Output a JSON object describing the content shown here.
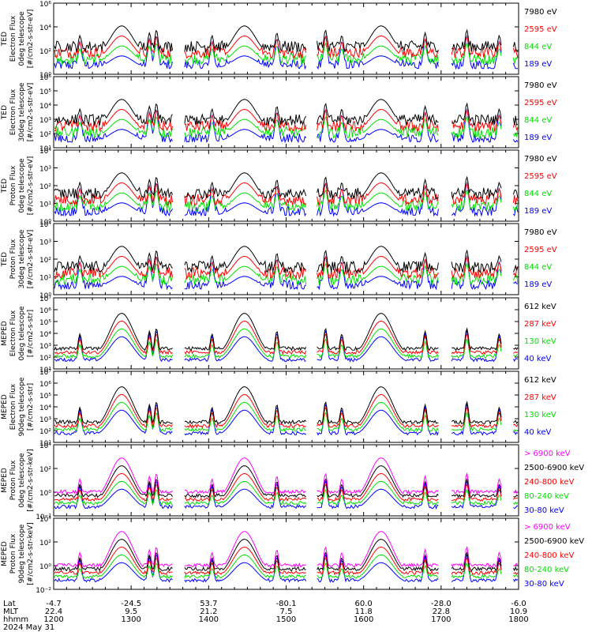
{
  "colors": {
    "blue": "#0000ff",
    "red": "#ff0000",
    "green": "#00e000",
    "black": "#000000",
    "magenta": "#ff00ff"
  },
  "chart_data": [
    {
      "type": "line",
      "ylabel": [
        "TED",
        "Electron Flux",
        "0deg telescope",
        "[#/cm2-s-str-eV]"
      ],
      "log_ticks": [
        "10⁰",
        "10²",
        "10⁴",
        "10⁶"
      ],
      "series": [
        {
          "name": "7980 eV",
          "color": "black"
        },
        {
          "name": "2595 eV",
          "color": "red"
        },
        {
          "name": "844 eV",
          "color": "green"
        },
        {
          "name": "189 eV",
          "color": "blue"
        }
      ]
    },
    {
      "type": "line",
      "ylabel": [
        "TED",
        "Electron Flux",
        "30deg telescope",
        "[#/cm2-s-str-eV]"
      ],
      "log_ticks": [
        "10¹",
        "10²",
        "10³",
        "10⁴",
        "10⁵",
        "10⁶"
      ],
      "series": [
        {
          "name": "7980 eV",
          "color": "black"
        },
        {
          "name": "2595 eV",
          "color": "red"
        },
        {
          "name": "844 eV",
          "color": "green"
        },
        {
          "name": "189 eV",
          "color": "blue"
        }
      ]
    },
    {
      "type": "line",
      "ylabel": [
        "TED",
        "Proton Flux",
        "0deg telescope",
        "[#/cm2-s-str-eV]"
      ],
      "log_ticks": [
        "10⁰",
        "10¹",
        "10²",
        "10³",
        "10⁴"
      ],
      "series": [
        {
          "name": "7980 eV",
          "color": "black"
        },
        {
          "name": "2595 eV",
          "color": "red"
        },
        {
          "name": "844 eV",
          "color": "green"
        },
        {
          "name": "189 eV",
          "color": "blue"
        }
      ]
    },
    {
      "type": "line",
      "ylabel": [
        "TED",
        "Proton Flux",
        "30deg telescope",
        "[#/cm2-s-str-eV]"
      ],
      "log_ticks": [
        "10⁰",
        "10¹",
        "10²",
        "10³",
        "10⁴"
      ],
      "series": [
        {
          "name": "7980 eV",
          "color": "black"
        },
        {
          "name": "2595 eV",
          "color": "red"
        },
        {
          "name": "844 eV",
          "color": "green"
        },
        {
          "name": "189 eV",
          "color": "blue"
        }
      ]
    },
    {
      "type": "line",
      "ylabel": [
        "MEPED",
        "Electron Flux",
        "0deg telescope",
        "[#/cm2-s-str]"
      ],
      "log_ticks": [
        "10¹",
        "10²",
        "10³",
        "10⁴",
        "10⁵",
        "10⁶",
        "10⁷"
      ],
      "series": [
        {
          "name": "612 keV",
          "color": "black"
        },
        {
          "name": "287 keV",
          "color": "red"
        },
        {
          "name": "130 keV",
          "color": "green"
        },
        {
          "name": "40 keV",
          "color": "blue"
        }
      ]
    },
    {
      "type": "line",
      "ylabel": [
        "MEPED",
        "Electron Flux",
        "90deg telescope",
        "[#/cm2-s-str]"
      ],
      "log_ticks": [
        "10¹",
        "10²",
        "10³",
        "10⁴",
        "10⁵",
        "10⁶",
        "10⁷"
      ],
      "series": [
        {
          "name": "612 keV",
          "color": "black"
        },
        {
          "name": "287 keV",
          "color": "red"
        },
        {
          "name": "130 keV",
          "color": "green"
        },
        {
          "name": "40 keV",
          "color": "blue"
        }
      ]
    },
    {
      "type": "line",
      "ylabel": [
        "MEPED",
        "Proton Flux",
        "0deg telescope",
        "[#/cm2-s-str-keV]"
      ],
      "log_ticks": [
        "10⁻²",
        "10⁰",
        "10²",
        "10⁴"
      ],
      "series": [
        {
          "name": "> 6900 keV",
          "color": "magenta"
        },
        {
          "name": "2500-6900 keV",
          "color": "black"
        },
        {
          "name": "240-800 keV",
          "color": "red"
        },
        {
          "name": "80-240 keV",
          "color": "green"
        },
        {
          "name": "30-80 keV",
          "color": "blue"
        }
      ]
    },
    {
      "type": "line",
      "ylabel": [
        "MEPED",
        "Proton Flux",
        "90deg telescope",
        "[#/cm2-s-str-keV]"
      ],
      "log_ticks": [
        "10⁻²",
        "10⁰",
        "10²",
        "10⁴"
      ],
      "series": [
        {
          "name": "> 6900 keV",
          "color": "magenta"
        },
        {
          "name": "2500-6900 keV",
          "color": "black"
        },
        {
          "name": "240-800 keV",
          "color": "red"
        },
        {
          "name": "80-240 keV",
          "color": "green"
        },
        {
          "name": "30-80 keV",
          "color": "blue"
        }
      ]
    }
  ],
  "xaxis": {
    "row_labels": [
      "Lat",
      "MLT",
      "hhmm",
      "2024 May 31"
    ],
    "ticks": [
      {
        "lat": "-4.7",
        "mlt": "22.4",
        "hhmm": "1200"
      },
      {
        "lat": "-24.5",
        "mlt": "9.5",
        "hhmm": "1300"
      },
      {
        "lat": "53.7",
        "mlt": "21.2",
        "hhmm": "1400"
      },
      {
        "lat": "-80.1",
        "mlt": "7.5",
        "hhmm": "1500"
      },
      {
        "lat": "60.0",
        "mlt": "11.8",
        "hhmm": "1600"
      },
      {
        "lat": "-28.0",
        "mlt": "22.8",
        "hhmm": "1700"
      },
      {
        "lat": "-6.0",
        "mlt": "10.9",
        "hhmm": "1800"
      }
    ]
  }
}
